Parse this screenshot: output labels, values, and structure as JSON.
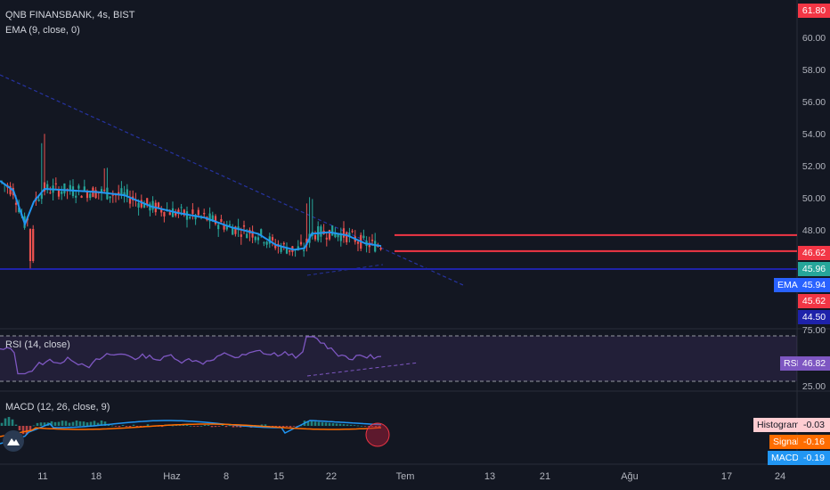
{
  "header": {
    "symbol": "QNB FINANSBANK, 4s, BIST",
    "ema_label": "EMA (9, close, 0)"
  },
  "rsi_panel": {
    "label": "RSI (14, close)",
    "tag": "RSI",
    "value": "46.82",
    "levels": [
      "75.00",
      "25.00"
    ]
  },
  "macd_panel": {
    "label": "MACD (12, 26, close, 9)",
    "histogram_tag": "Histogram",
    "histogram_value": "-0.03",
    "signal_tag": "Signal",
    "signal_value": "-0.16",
    "macd_tag": "MACD",
    "macd_value": "-0.19"
  },
  "price_axis": {
    "ticks": [
      "60.00",
      "58.00",
      "56.00",
      "54.00",
      "52.00",
      "50.00",
      "48.00"
    ],
    "badges": [
      {
        "value": "61.80",
        "color": "#f23645"
      },
      {
        "value": "46.62",
        "color": "#f23645"
      },
      {
        "value": "45.96",
        "color": "#26a69a"
      },
      {
        "value": "45.94",
        "color": "#2962ff"
      },
      {
        "value": "45.62",
        "color": "#f23645"
      },
      {
        "value": "44.50",
        "color": "#1e22aa"
      }
    ],
    "ema_tag": "EMA"
  },
  "time_axis": [
    "11",
    "18",
    "Haz",
    "8",
    "15",
    "22",
    "Tem",
    "13",
    "21",
    "Ağu",
    "17",
    "24"
  ],
  "colors": {
    "up": "#26a69a",
    "down": "#ef5350",
    "ema": "#2196f3",
    "rsi": "#7e57c2",
    "macd": "#2196f3",
    "signal": "#ff6d00",
    "hline_red": "#f23645",
    "hline_blue": "#1e22aa",
    "trend_dashed": "#2633a0"
  },
  "chart_data": {
    "type": "candlestick",
    "ylim": [
      44.2,
      62.2
    ],
    "horizontal_levels": [
      61.8,
      46.62,
      45.62,
      44.5
    ],
    "last_price": 45.96,
    "ema_value": 45.94,
    "ema_key_values": [
      50.0,
      47.3,
      49.5,
      49.0,
      48.3,
      47.7,
      46.6,
      45.8,
      45.6,
      46.8,
      46.4,
      45.9
    ],
    "rsi_value": 46.82,
    "macd": {
      "histogram": -0.03,
      "signal": -0.16,
      "macd": -0.19
    }
  }
}
